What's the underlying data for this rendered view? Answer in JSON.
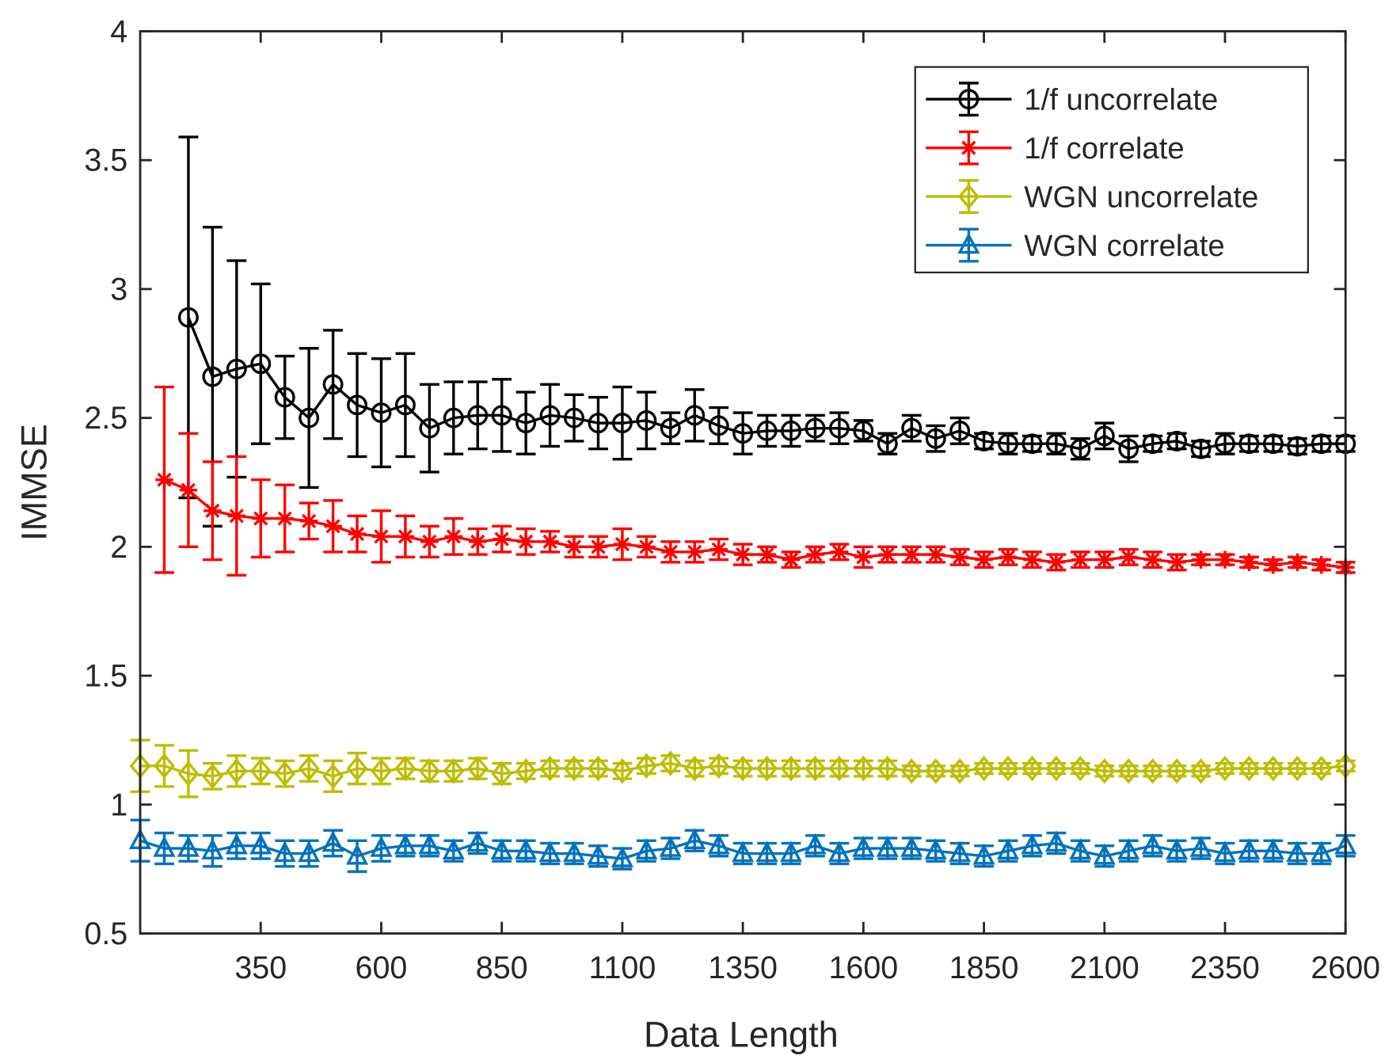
{
  "chart_data": {
    "type": "line",
    "xlabel": "Data Length",
    "ylabel": "IMMSE",
    "x": [
      100,
      150,
      200,
      250,
      300,
      350,
      400,
      450,
      500,
      550,
      600,
      650,
      700,
      750,
      800,
      850,
      900,
      950,
      1000,
      1050,
      1100,
      1150,
      1200,
      1250,
      1300,
      1350,
      1400,
      1450,
      1500,
      1550,
      1600,
      1650,
      1700,
      1750,
      1800,
      1850,
      1900,
      1950,
      2000,
      2050,
      2100,
      2150,
      2200,
      2250,
      2300,
      2350,
      2400,
      2450,
      2500,
      2550,
      2600
    ],
    "xlim": [
      100,
      2600
    ],
    "xticks": [
      350,
      600,
      850,
      1100,
      1350,
      1600,
      1850,
      2100,
      2350,
      2600
    ],
    "ylim": [
      0.5,
      4
    ],
    "yticks": [
      0.5,
      1,
      1.5,
      2,
      2.5,
      3,
      3.5,
      4
    ],
    "legend": "upper right",
    "series": [
      {
        "name": "1/f uncorrelate",
        "color": "#000000",
        "marker": "o",
        "values": [
          null,
          null,
          2.89,
          2.66,
          2.69,
          2.71,
          2.58,
          2.5,
          2.63,
          2.55,
          2.52,
          2.55,
          2.46,
          2.5,
          2.51,
          2.51,
          2.48,
          2.51,
          2.5,
          2.48,
          2.48,
          2.49,
          2.46,
          2.51,
          2.47,
          2.44,
          2.45,
          2.45,
          2.46,
          2.46,
          2.45,
          2.4,
          2.46,
          2.42,
          2.45,
          2.41,
          2.4,
          2.4,
          2.4,
          2.38,
          2.43,
          2.38,
          2.4,
          2.41,
          2.38,
          2.4,
          2.4,
          2.4,
          2.39,
          2.4,
          2.4
        ],
        "errors": [
          null,
          null,
          0.7,
          0.58,
          0.42,
          0.31,
          0.16,
          0.27,
          0.21,
          0.2,
          0.21,
          0.2,
          0.17,
          0.14,
          0.13,
          0.14,
          0.12,
          0.12,
          0.09,
          0.1,
          0.14,
          0.11,
          0.06,
          0.1,
          0.07,
          0.08,
          0.06,
          0.06,
          0.05,
          0.06,
          0.04,
          0.04,
          0.05,
          0.05,
          0.05,
          0.03,
          0.04,
          0.03,
          0.04,
          0.04,
          0.05,
          0.05,
          0.03,
          0.03,
          0.03,
          0.04,
          0.03,
          0.03,
          0.03,
          0.03,
          0.03
        ]
      },
      {
        "name": "1/f correlate",
        "color": "#ff0000",
        "marker": "*",
        "values": [
          null,
          2.26,
          2.22,
          2.14,
          2.12,
          2.11,
          2.11,
          2.1,
          2.08,
          2.05,
          2.04,
          2.04,
          2.02,
          2.04,
          2.02,
          2.03,
          2.02,
          2.02,
          2.0,
          2.0,
          2.01,
          2.0,
          1.98,
          1.98,
          1.99,
          1.97,
          1.97,
          1.95,
          1.97,
          1.98,
          1.96,
          1.97,
          1.97,
          1.97,
          1.96,
          1.95,
          1.96,
          1.95,
          1.94,
          1.95,
          1.95,
          1.96,
          1.95,
          1.94,
          1.95,
          1.95,
          1.94,
          1.93,
          1.94,
          1.93,
          1.92
        ],
        "errors": [
          null,
          0.36,
          0.22,
          0.19,
          0.23,
          0.15,
          0.13,
          0.07,
          0.1,
          0.07,
          0.1,
          0.08,
          0.06,
          0.07,
          0.05,
          0.05,
          0.05,
          0.04,
          0.04,
          0.04,
          0.06,
          0.04,
          0.04,
          0.04,
          0.04,
          0.04,
          0.03,
          0.03,
          0.03,
          0.03,
          0.04,
          0.03,
          0.03,
          0.03,
          0.03,
          0.03,
          0.03,
          0.03,
          0.03,
          0.03,
          0.03,
          0.03,
          0.03,
          0.03,
          0.02,
          0.02,
          0.02,
          0.02,
          0.02,
          0.02,
          0.02
        ]
      },
      {
        "name": "WGN uncorrelate",
        "color": "#bdbd00",
        "marker": "d",
        "values": [
          1.15,
          1.15,
          1.12,
          1.11,
          1.13,
          1.13,
          1.12,
          1.14,
          1.11,
          1.14,
          1.13,
          1.14,
          1.13,
          1.13,
          1.14,
          1.12,
          1.13,
          1.14,
          1.14,
          1.14,
          1.13,
          1.15,
          1.16,
          1.14,
          1.15,
          1.14,
          1.14,
          1.14,
          1.14,
          1.14,
          1.14,
          1.14,
          1.13,
          1.13,
          1.13,
          1.14,
          1.14,
          1.14,
          1.14,
          1.14,
          1.13,
          1.13,
          1.13,
          1.13,
          1.13,
          1.14,
          1.14,
          1.14,
          1.14,
          1.14,
          1.15
        ],
        "errors": [
          0.1,
          0.08,
          0.09,
          0.05,
          0.06,
          0.05,
          0.05,
          0.05,
          0.06,
          0.06,
          0.05,
          0.04,
          0.04,
          0.04,
          0.04,
          0.04,
          0.03,
          0.03,
          0.03,
          0.03,
          0.03,
          0.03,
          0.03,
          0.03,
          0.03,
          0.03,
          0.03,
          0.03,
          0.03,
          0.03,
          0.03,
          0.03,
          0.02,
          0.02,
          0.02,
          0.02,
          0.02,
          0.02,
          0.02,
          0.02,
          0.02,
          0.02,
          0.02,
          0.02,
          0.02,
          0.02,
          0.02,
          0.02,
          0.02,
          0.02,
          0.02
        ]
      },
      {
        "name": "WGN correlate",
        "color": "#0072bd",
        "marker": "^",
        "values": [
          0.86,
          0.83,
          0.83,
          0.82,
          0.84,
          0.84,
          0.81,
          0.81,
          0.85,
          0.8,
          0.83,
          0.84,
          0.84,
          0.82,
          0.85,
          0.82,
          0.82,
          0.81,
          0.81,
          0.8,
          0.79,
          0.82,
          0.83,
          0.86,
          0.84,
          0.81,
          0.81,
          0.81,
          0.84,
          0.81,
          0.83,
          0.83,
          0.83,
          0.82,
          0.81,
          0.8,
          0.82,
          0.84,
          0.85,
          0.82,
          0.8,
          0.82,
          0.84,
          0.82,
          0.83,
          0.81,
          0.82,
          0.82,
          0.81,
          0.81,
          0.84
        ],
        "errors": [
          0.08,
          0.06,
          0.05,
          0.06,
          0.05,
          0.05,
          0.05,
          0.05,
          0.05,
          0.06,
          0.05,
          0.04,
          0.04,
          0.04,
          0.04,
          0.04,
          0.04,
          0.04,
          0.04,
          0.04,
          0.04,
          0.04,
          0.04,
          0.04,
          0.04,
          0.04,
          0.04,
          0.04,
          0.04,
          0.04,
          0.04,
          0.04,
          0.04,
          0.04,
          0.04,
          0.04,
          0.04,
          0.04,
          0.04,
          0.04,
          0.04,
          0.04,
          0.04,
          0.04,
          0.04,
          0.04,
          0.04,
          0.04,
          0.04,
          0.04,
          0.04
        ]
      }
    ]
  }
}
